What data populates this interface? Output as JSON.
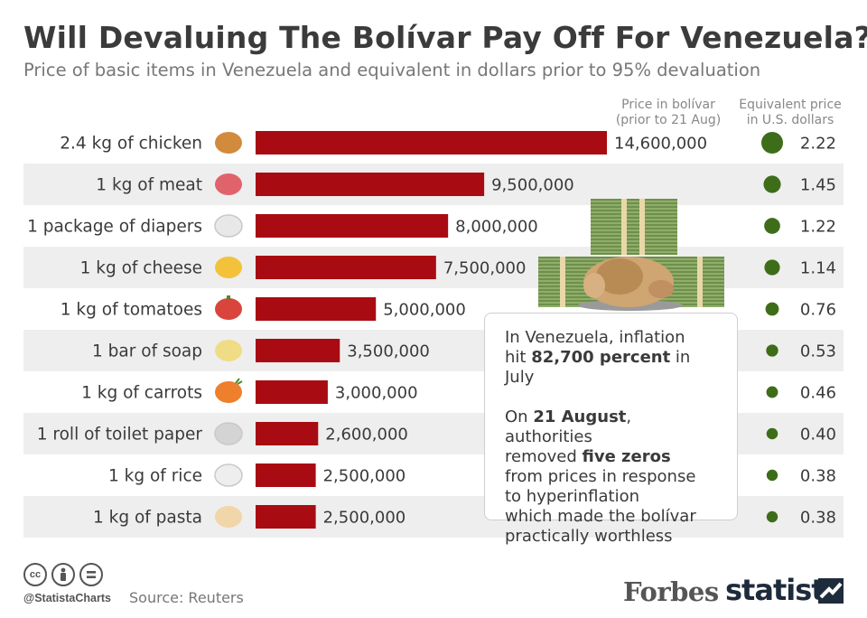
{
  "title": "Will Devaluing The Bolívar Pay Off For Venezuela?",
  "subtitle": "Price of basic items in Venezuela and equivalent in dollars prior to 95% devaluation",
  "column_headers": {
    "bolivar": [
      "Price in bolívar",
      "(prior to 21 Aug)"
    ],
    "usd": [
      "Equivalent price",
      "in U.S. dollars"
    ]
  },
  "chart_data": {
    "type": "bar",
    "orientation": "horizontal",
    "categories": [
      "2.4 kg of chicken",
      "1 kg of meat",
      "1 package of diapers",
      "1 kg of cheese",
      "1 kg of tomatoes",
      "1 bar of soap",
      "1 kg of carrots",
      "1 roll of toilet paper",
      "1 kg of rice",
      "1 kg of pasta"
    ],
    "icons": [
      "chicken-leg-icon",
      "meat-icon",
      "diaper-icon",
      "cheese-icon",
      "tomato-icon",
      "soap-icon",
      "carrot-icon",
      "toilet-paper-icon",
      "rice-icon",
      "pasta-icon"
    ],
    "series": [
      {
        "name": "Price in bolívar (prior to 21 Aug)",
        "values": [
          14600000,
          9500000,
          8000000,
          7500000,
          5000000,
          3500000,
          3000000,
          2600000,
          2500000,
          2500000
        ],
        "labels": [
          "14,600,000",
          "9,500,000",
          "8,000,000",
          "7,500,000",
          "5,000,000",
          "3,500,000",
          "3,000,000",
          "2,600,000",
          "2,500,000",
          "2,500,000"
        ],
        "color": "#a90b12"
      },
      {
        "name": "Equivalent price in U.S. dollars",
        "values": [
          2.22,
          1.45,
          1.22,
          1.14,
          0.76,
          0.53,
          0.46,
          0.4,
          0.38,
          0.38
        ],
        "labels": [
          "2.22",
          "1.45",
          "1.22",
          "1.14",
          "0.76",
          "0.53",
          "0.46",
          "0.40",
          "0.38",
          "0.38"
        ],
        "color": "#3e6d1a"
      }
    ]
  },
  "callout": {
    "p1": {
      "a": "In Venezuela, inflation",
      "b_pre": "hit ",
      "b_bold": "82,700 percent",
      "b_post": " in July"
    },
    "p2": {
      "a_pre": "On ",
      "a_bold": "21 August",
      "a_post": ", authorities",
      "b_pre": "removed ",
      "b_bold": "five zeros",
      "rest": [
        "from prices in response",
        "to hyperinflation",
        "which made the bolívar",
        "practically worthless"
      ]
    }
  },
  "footer": {
    "handle": "@StatistaCharts",
    "source": "Source: Reuters",
    "brand1": "Forbes",
    "brand2": "statista",
    "license_icons": [
      "cc-icon",
      "attribution-icon",
      "no-derivatives-icon"
    ]
  }
}
